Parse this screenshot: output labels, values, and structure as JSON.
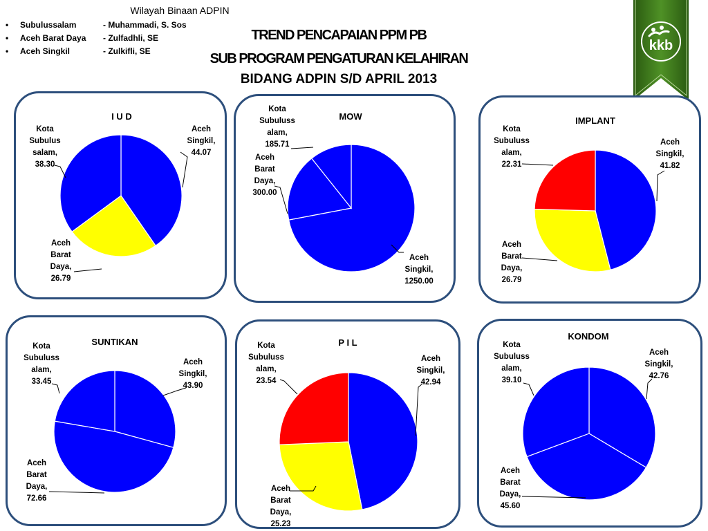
{
  "header": {
    "title": "Wilayah Binaan ADPIN",
    "bullet": "•",
    "items": [
      {
        "region": "Subulussalam",
        "person": "-  Muhammadi, S. Sos"
      },
      {
        "region": "Aceh Barat Daya",
        "person": "-   Zulfadhli, SE"
      },
      {
        "region": "Aceh Singkil",
        "person": "-  Zulkifli, SE"
      }
    ]
  },
  "main_title": {
    "line1": "TREND PENCAPAIAN  PPM   PB",
    "line2": "SUB   PROGRAM  PENGATURAN   KELAHIRAN",
    "line3": "BIDANG ADPIN S/D  APRIL 2013"
  },
  "logo": {
    "text": "kkb",
    "ribbon_color": "#3e7a1c"
  },
  "colors": {
    "blue": "#0000ff",
    "yellow": "#ffff00",
    "red": "#ff0000",
    "panel_border": "#2d4f7c"
  },
  "chart_data": [
    {
      "type": "pie",
      "title": "I U D",
      "categories": [
        "Aceh Singkil",
        "Aceh Barat Daya",
        "Kota Subulussalam"
      ],
      "values": [
        44.07,
        26.79,
        38.3
      ],
      "labels": [
        [
          "Aceh",
          "Singkil,",
          "44.07"
        ],
        [
          "Aceh",
          "Barat",
          "Daya,",
          "26.79"
        ],
        [
          "Kota",
          "Subulus",
          "salam,",
          "38.30"
        ]
      ],
      "colors": [
        "#0000ff",
        "#ffff00",
        "#0000ff"
      ]
    },
    {
      "type": "pie",
      "title": "MOW",
      "categories": [
        "Aceh Singkil",
        "Aceh Barat Daya",
        "Kota Subulussalam"
      ],
      "values": [
        1250.0,
        300.0,
        185.71
      ],
      "labels": [
        [
          "Aceh",
          "Singkil,",
          "1250.00"
        ],
        [
          "Aceh",
          "Barat",
          "Daya,",
          "300.00"
        ],
        [
          "Kota",
          "Subuluss",
          "alam,",
          "185.71"
        ]
      ],
      "colors": [
        "#0000ff",
        "#0000ff",
        "#0000ff"
      ]
    },
    {
      "type": "pie",
      "title": "IMPLANT",
      "categories": [
        "Aceh Singkil",
        "Aceh Barat Daya",
        "Kota Subulussalam"
      ],
      "values": [
        41.82,
        26.79,
        22.31
      ],
      "labels": [
        [
          "Aceh",
          "Singkil,",
          "41.82"
        ],
        [
          "Aceh",
          "Barat",
          "Daya,",
          "26.79"
        ],
        [
          "Kota",
          "Subuluss",
          "alam,",
          "22.31"
        ]
      ],
      "colors": [
        "#0000ff",
        "#ffff00",
        "#ff0000"
      ]
    },
    {
      "type": "pie",
      "title": "SUNTIKAN",
      "categories": [
        "Aceh Singkil",
        "Aceh Barat Daya",
        "Kota Subulussalam"
      ],
      "values": [
        43.9,
        72.66,
        33.45
      ],
      "labels": [
        [
          "Aceh",
          "Singkil,",
          "43.90"
        ],
        [
          "Aceh",
          "Barat",
          "Daya,",
          "72.66"
        ],
        [
          "Kota",
          "Subuluss",
          "alam,",
          "33.45"
        ]
      ],
      "colors": [
        "#0000ff",
        "#0000ff",
        "#0000ff"
      ]
    },
    {
      "type": "pie",
      "title": "P I L",
      "categories": [
        "Aceh Singkil",
        "Aceh Barat Daya",
        "Kota Subulussalam"
      ],
      "values": [
        42.94,
        25.23,
        23.54
      ],
      "labels": [
        [
          "Aceh",
          "Singkil,",
          "42.94"
        ],
        [
          "Aceh",
          "Barat",
          "Daya,",
          "25.23"
        ],
        [
          "Kota",
          "Subuluss",
          "alam,",
          "23.54"
        ]
      ],
      "colors": [
        "#0000ff",
        "#ffff00",
        "#ff0000"
      ]
    },
    {
      "type": "pie",
      "title": "KONDOM",
      "categories": [
        "Aceh Singkil",
        "Aceh Barat Daya",
        "Kota Subulussalam"
      ],
      "values": [
        42.76,
        45.6,
        39.1
      ],
      "labels": [
        [
          "Aceh",
          "Singkil,",
          "42.76"
        ],
        [
          "Aceh",
          "Barat",
          "Daya,",
          "45.60"
        ],
        [
          "Kota",
          "Subuluss",
          "alam,",
          "39.10"
        ]
      ],
      "colors": [
        "#0000ff",
        "#0000ff",
        "#0000ff"
      ]
    }
  ]
}
